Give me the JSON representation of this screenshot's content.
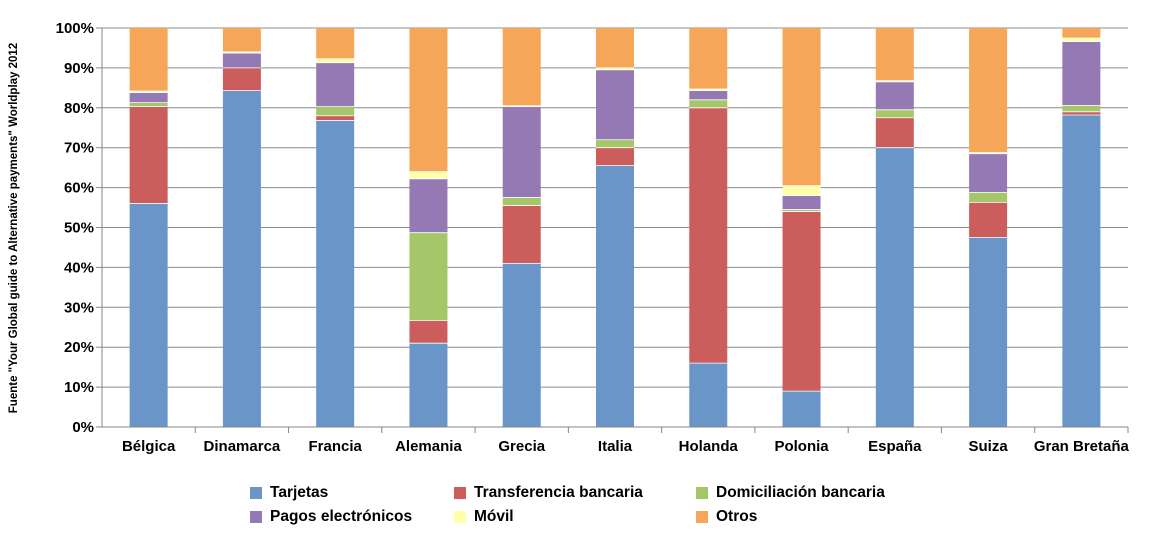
{
  "chart_data": {
    "type": "stacked-bar-100",
    "ylabel": "Fuente \"Your Global guide to Alternative payments\" Worldplay 2012",
    "ylim": [
      0,
      100
    ],
    "y_ticks": [
      "0%",
      "10%",
      "20%",
      "30%",
      "40%",
      "50%",
      "60%",
      "70%",
      "80%",
      "90%",
      "100%"
    ],
    "categories": [
      "Bélgica",
      "Dinamarca",
      "Francia",
      "Alemania",
      "Grecia",
      "Italia",
      "Holanda",
      "Polonia",
      "España",
      "Suiza",
      "Gran Bretaña"
    ],
    "series": [
      {
        "name": "Tarjetas",
        "color": "#6A95C9",
        "values": [
          56,
          84.3,
          76.8,
          21,
          41,
          65.5,
          16,
          9,
          70,
          47.5,
          78.2
        ]
      },
      {
        "name": "Transferencia  bancaria",
        "color": "#CB5E5D",
        "values": [
          24.3,
          5.7,
          1.2,
          5.7,
          14.5,
          4.5,
          64,
          45,
          7.5,
          8.8,
          0.8
        ]
      },
      {
        "name": "Domiciliación  bancaria",
        "color": "#A5C76A",
        "values": [
          1,
          0,
          2.3,
          22,
          2,
          2,
          2,
          0.5,
          2,
          2.5,
          1.6
        ]
      },
      {
        "name": "Pagos  electrónicos",
        "color": "#9579B5",
        "values": [
          2.5,
          3.7,
          11,
          13.5,
          22.8,
          17.5,
          2.3,
          3.5,
          7,
          9.7,
          16
        ]
      },
      {
        "name": "Móvil",
        "color": "#FFFFAA",
        "values": [
          0.4,
          0.3,
          1,
          1.8,
          0.2,
          0.5,
          0.4,
          2.5,
          0.3,
          0.3,
          0.9
        ]
      },
      {
        "name": "Otros",
        "color": "#F6A659",
        "values": [
          15.8,
          6,
          7.7,
          36,
          19.5,
          10,
          15.3,
          39.5,
          13.2,
          31.2,
          2.5
        ]
      }
    ]
  },
  "legend": {
    "tarjetas": "Tarjetas",
    "transferencia": "Transferencia  bancaria",
    "domiciliacion": "Domiciliación  bancaria",
    "pagos": "Pagos  electrónicos",
    "movil": "Móvil",
    "otros": "Otros"
  }
}
